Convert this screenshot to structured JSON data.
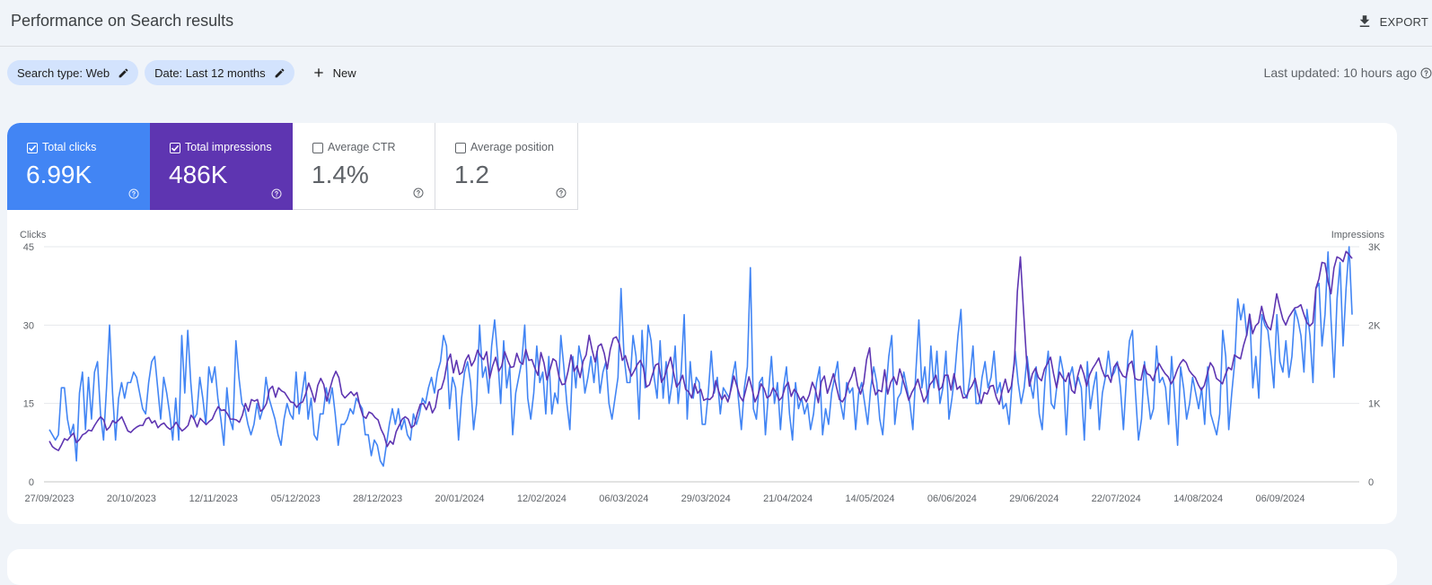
{
  "header": {
    "title": "Performance on Search results",
    "export_label": "EXPORT"
  },
  "filters": {
    "search_type": "Search type: Web",
    "date": "Date: Last 12 months",
    "new_label": "New",
    "last_updated": "Last updated: 10 hours ago"
  },
  "metrics": [
    {
      "label": "Total clicks",
      "value": "6.99K",
      "checked": true,
      "color": "#4285f4"
    },
    {
      "label": "Total impressions",
      "value": "486K",
      "checked": true,
      "color": "#5e35b1"
    },
    {
      "label": "Average CTR",
      "value": "1.4%",
      "checked": false
    },
    {
      "label": "Average position",
      "value": "1.2",
      "checked": false
    }
  ],
  "chart_data": {
    "type": "line",
    "y_left_label": "Clicks",
    "y_right_label": "Impressions",
    "y_left_ticks": [
      "0",
      "15",
      "30",
      "45"
    ],
    "y_right_ticks": [
      "0",
      "1K",
      "2K",
      "3K"
    ],
    "y_left_range": [
      0,
      45
    ],
    "y_right_range": [
      0,
      3000
    ],
    "x_tick_labels": [
      "27/09/2023",
      "20/10/2023",
      "12/11/2023",
      "05/12/2023",
      "28/12/2023",
      "20/01/2024",
      "12/02/2024",
      "06/03/2024",
      "29/03/2024",
      "21/04/2024",
      "14/05/2024",
      "06/06/2024",
      "29/06/2024",
      "22/07/2024",
      "14/08/2024",
      "06/09/2024"
    ],
    "grid": true,
    "series": [
      {
        "name": "Clicks",
        "axis": "left",
        "color": "#4285f4",
        "values": [
          10,
          9,
          8,
          9,
          18,
          18,
          12,
          9,
          11,
          4,
          17,
          21,
          10,
          20,
          12,
          21,
          23,
          13,
          8,
          18,
          30,
          17,
          8,
          16,
          19,
          16,
          19,
          19,
          21,
          20,
          17,
          14,
          13,
          19,
          23,
          24,
          18,
          12,
          20,
          17,
          13,
          8,
          16,
          8,
          28,
          17,
          29,
          19,
          12,
          13,
          20,
          16,
          11,
          22,
          19,
          22,
          16,
          12,
          7,
          18,
          12,
          10,
          27,
          20,
          15,
          14,
          11,
          9,
          11,
          15,
          12,
          14,
          20,
          16,
          14,
          12,
          9,
          7,
          12,
          15,
          13,
          12,
          21,
          13,
          17,
          21,
          12,
          16,
          9,
          8,
          13,
          13,
          18,
          15,
          18,
          13,
          7,
          11,
          11,
          12,
          14,
          13,
          16,
          15,
          14,
          9,
          9,
          5,
          8,
          7,
          4,
          3,
          7,
          11,
          14,
          11,
          14,
          10,
          12,
          9,
          8,
          13,
          11,
          13,
          16,
          15,
          18,
          20,
          17,
          21,
          23,
          28,
          26,
          14,
          20,
          18,
          8,
          16,
          21,
          23,
          19,
          10,
          15,
          30,
          20,
          22,
          17,
          26,
          31,
          24,
          15,
          27,
          18,
          22,
          9,
          17,
          20,
          23,
          30,
          16,
          12,
          17,
          26,
          19,
          21,
          13,
          24,
          13,
          17,
          15,
          28,
          22,
          15,
          10,
          24,
          18,
          26,
          23,
          17,
          20,
          24,
          19,
          25,
          17,
          21,
          23,
          15,
          12,
          16,
          20,
          37,
          24,
          19,
          19,
          28,
          24,
          12,
          29,
          18,
          30,
          27,
          20,
          16,
          27,
          16,
          23,
          15,
          19,
          26,
          15,
          21,
          32,
          12,
          23,
          16,
          20,
          19,
          11,
          11,
          17,
          25,
          17,
          20,
          13,
          18,
          17,
          16,
          20,
          23,
          16,
          10,
          18,
          22,
          41,
          14,
          12,
          19,
          20,
          9,
          17,
          24,
          15,
          19,
          10,
          18,
          22,
          13,
          8,
          19,
          14,
          16,
          13,
          15,
          10,
          13,
          19,
          22,
          9,
          14,
          11,
          17,
          20,
          23,
          15,
          12,
          19,
          17,
          18,
          10,
          17,
          19,
          15,
          11,
          18,
          22,
          19,
          12,
          9,
          17,
          24,
          28,
          11,
          16,
          17,
          21,
          18,
          15,
          10,
          21,
          31,
          18,
          22,
          15,
          26,
          18,
          25,
          15,
          18,
          25,
          12,
          16,
          21,
          28,
          33,
          17,
          16,
          20,
          26,
          15,
          15,
          20,
          23,
          18,
          20,
          25,
          17,
          19,
          14,
          15,
          11,
          19,
          25,
          19,
          15,
          18,
          24,
          19,
          16,
          22,
          13,
          10,
          20,
          25,
          15,
          14,
          19,
          24,
          21,
          9,
          20,
          22,
          18,
          20,
          18,
          8,
          23,
          14,
          18,
          21,
          10,
          17,
          20,
          25,
          20,
          21,
          23,
          18,
          10,
          20,
          27,
          29,
          17,
          8,
          12,
          23,
          17,
          12,
          14,
          26,
          19,
          20,
          18,
          11,
          24,
          16,
          7,
          22,
          18,
          12,
          15,
          20,
          17,
          14,
          18,
          11,
          22,
          13,
          11,
          9,
          13,
          29,
          24,
          10,
          17,
          23,
          35,
          31,
          34,
          28,
          32,
          18,
          24,
          16,
          32,
          30,
          29,
          24,
          18,
          32,
          23,
          21,
          27,
          20,
          24,
          33,
          31,
          28,
          21,
          33,
          28,
          19,
          37,
          38,
          26,
          32,
          44,
          31,
          20,
          35,
          42,
          26,
          37,
          45,
          32
        ]
      },
      {
        "name": "Impressions",
        "axis": "right",
        "color": "#5e35b1",
        "values": [
          520,
          450,
          420,
          400,
          470,
          550,
          530,
          580,
          620,
          500,
          540,
          600,
          620,
          660,
          650,
          720,
          780,
          830,
          790,
          660,
          700,
          780,
          750,
          790,
          830,
          740,
          650,
          630,
          670,
          700,
          720,
          720,
          800,
          820,
          750,
          780,
          690,
          730,
          750,
          700,
          670,
          700,
          760,
          700,
          650,
          680,
          720,
          850,
          800,
          700,
          810,
          770,
          730,
          770,
          800,
          890,
          960,
          910,
          920,
          870,
          800,
          800,
          790,
          760,
          850,
          1000,
          900,
          1050,
          1030,
          1050,
          900,
          930,
          1000,
          1180,
          1220,
          1080,
          1200,
          1160,
          1140,
          1080,
          1020,
          1010,
          950,
          1000,
          1020,
          1120,
          1260,
          1150,
          1020,
          1230,
          1320,
          1240,
          1030,
          1180,
          1320,
          1410,
          1330,
          1120,
          1070,
          1110,
          1150,
          1100,
          1140,
          960,
          840,
          810,
          890,
          870,
          820,
          790,
          670,
          590,
          450,
          520,
          480,
          640,
          720,
          800,
          830,
          800,
          690,
          720,
          870,
          990,
          1000,
          920,
          1020,
          880,
          950,
          1170,
          1190,
          1320,
          1540,
          1630,
          1390,
          1550,
          1370,
          1400,
          1550,
          1620,
          1480,
          1550,
          1680,
          1600,
          1560,
          1660,
          1320,
          1480,
          1590,
          1410,
          1480,
          1660,
          1550,
          1460,
          1470,
          1640,
          1530,
          1500,
          1690,
          1550,
          1560,
          1450,
          1360,
          1650,
          1520,
          1300,
          1430,
          1570,
          1540,
          1340,
          1240,
          1250,
          1410,
          1620,
          1410,
          1480,
          1330,
          1540,
          1620,
          1870,
          1680,
          1530,
          1730,
          1760,
          1640,
          1440,
          1690,
          1830,
          1850,
          1760,
          1550,
          1610,
          1470,
          1350,
          1420,
          1500,
          1550,
          1450,
          1210,
          1240,
          1370,
          1490,
          1510,
          1270,
          1340,
          1470,
          1590,
          1390,
          1210,
          1270,
          1360,
          1180,
          1150,
          1070,
          1250,
          1130,
          1180,
          1040,
          1060,
          1050,
          1090,
          1290,
          1150,
          1050,
          1110,
          1020,
          1170,
          1350,
          1220,
          1090,
          1030,
          1180,
          1340,
          1190,
          1020,
          1110,
          1250,
          1190,
          1070,
          1100,
          1200,
          1140,
          1040,
          1080,
          1210,
          1270,
          1090,
          1180,
          1130,
          1040,
          1090,
          1020,
          1110,
          1270,
          1180,
          1010,
          1280,
          1350,
          1130,
          1250,
          1380,
          1210,
          1050,
          1020,
          1090,
          1260,
          1340,
          1460,
          1230,
          1120,
          1250,
          1560,
          1710,
          1270,
          1110,
          1170,
          1150,
          1430,
          1120,
          1270,
          1340,
          1240,
          1440,
          1310,
          1180,
          1040,
          1140,
          1210,
          1310,
          1160,
          1020,
          1100,
          1240,
          1290,
          1360,
          1170,
          1210,
          1360,
          1360,
          1170,
          1380,
          1180,
          1220,
          1070,
          1080,
          1170,
          1230,
          1320,
          1130,
          1000,
          1140,
          1120,
          1220,
          1230,
          1080,
          990,
          1170,
          1310,
          1140,
          1220,
          1510,
          2430,
          2870,
          2210,
          1580,
          1220,
          1380,
          1450,
          1330,
          1290,
          1440,
          1510,
          1590,
          1380,
          1200,
          1400,
          1330,
          1280,
          1390,
          1170,
          1130,
          1350,
          1490,
          1380,
          1220,
          1370,
          1450,
          1510,
          1580,
          1440,
          1340,
          1360,
          1270,
          1460,
          1520,
          1420,
          1350,
          1330,
          1500,
          1540,
          1320,
          1300,
          1300,
          1490,
          1380,
          1360,
          1290,
          1420,
          1510,
          1440,
          1380,
          1340,
          1250,
          1320,
          1430,
          1510,
          1560,
          1520,
          1420,
          1370,
          1330,
          1240,
          1170,
          1230,
          1380,
          1520,
          1460,
          1320,
          1290,
          1250,
          1370,
          1460,
          1430,
          1620,
          1590,
          1570,
          1740,
          1870,
          2140,
          1890,
          1990,
          2030,
          2240,
          2070,
          1980,
          1940,
          2150,
          2400,
          2230,
          2080,
          2000,
          2100,
          2160,
          2220,
          2230,
          2260,
          2140,
          2030,
          1990,
          2030,
          2470,
          2590,
          2800,
          2790,
          2560,
          2400,
          2730,
          2870,
          2850,
          2810,
          2940,
          2900,
          2850
        ]
      }
    ]
  }
}
